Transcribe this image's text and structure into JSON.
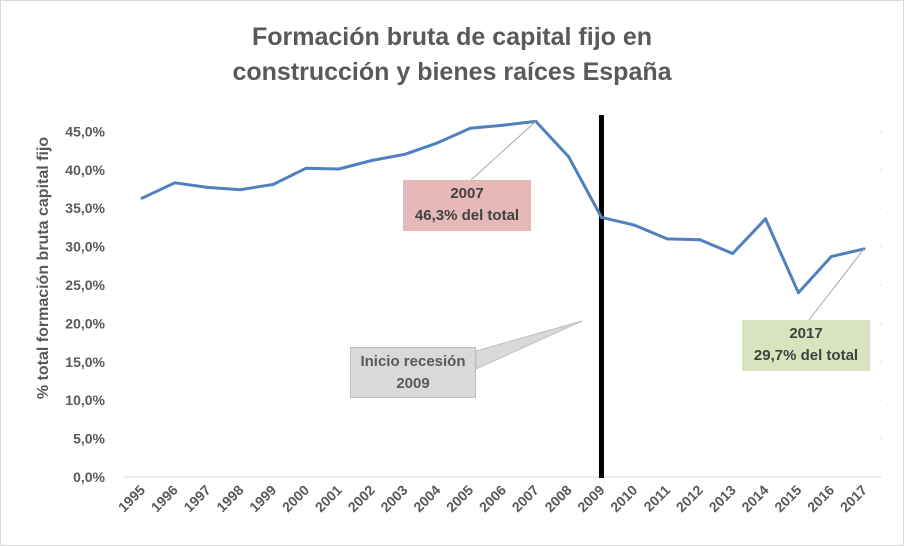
{
  "chart_data": {
    "type": "line",
    "title_line1": "Formación bruta de capital fijo en",
    "title_line2": "construcción y bienes raíces España",
    "xlabel": "",
    "ylabel": "% total formación bruta capital fijo",
    "ylim": [
      0,
      47
    ],
    "yticks": [
      "0,0%",
      "5,0%",
      "10,0%",
      "15,0%",
      "20,0%",
      "25,0%",
      "30,0%",
      "35,0%",
      "40,0%",
      "45,0%"
    ],
    "ytick_values": [
      0,
      5,
      10,
      15,
      20,
      25,
      30,
      35,
      40,
      45
    ],
    "grid": false,
    "categories": [
      "1995",
      "1996",
      "1997",
      "1998",
      "1999",
      "2000",
      "2001",
      "2002",
      "2003",
      "2004",
      "2005",
      "2006",
      "2007",
      "2008",
      "2009",
      "2010",
      "2011",
      "2012",
      "2013",
      "2014",
      "2015",
      "2016",
      "2017"
    ],
    "series": [
      {
        "values": [
          36.3,
          38.3,
          37.7,
          37.4,
          38.1,
          40.2,
          40.1,
          41.2,
          42.0,
          43.5,
          45.4,
          45.8,
          46.3,
          41.7,
          33.8,
          32.8,
          31.0,
          30.9,
          29.1,
          33.6,
          24.0,
          28.7,
          29.7
        ],
        "color": "#4f81bd"
      }
    ],
    "recession_line": {
      "x": "2009",
      "color": "#000000"
    },
    "annotations": [
      {
        "line1": "2007",
        "line2": "46,3% del total",
        "x": "2007",
        "y": 46.3,
        "fill": "#e6b9b8"
      },
      {
        "line1": "2017",
        "line2": "29,7% del total",
        "x": "2017",
        "y": 29.7,
        "fill": "#d7e4bd"
      },
      {
        "line1": "Inicio recesión",
        "line2": "2009",
        "fill": "#d9d9d9"
      }
    ]
  }
}
